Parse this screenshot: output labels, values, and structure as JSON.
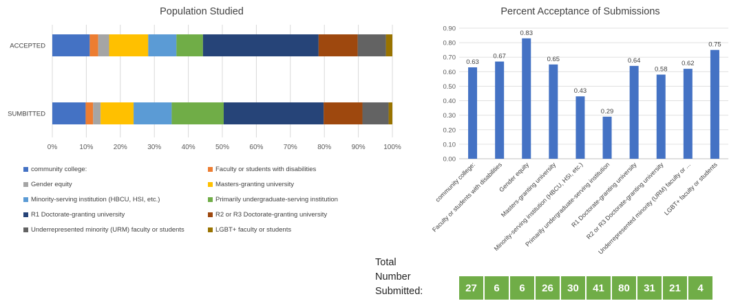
{
  "chart_data": [
    {
      "type": "bar",
      "orientation": "horizontal-stacked-100",
      "title": "Population Studied",
      "categories": [
        "ACCEPTED",
        "SUMBITTED"
      ],
      "x_ticks": [
        "0%",
        "10%",
        "20%",
        "30%",
        "40%",
        "50%",
        "60%",
        "70%",
        "80%",
        "90%",
        "100%"
      ],
      "xlim": [
        0,
        100
      ],
      "legend_position": "bottom",
      "series": [
        {
          "name": "community college:",
          "color": "#4472c4",
          "values": [
            11.0,
            9.8
          ]
        },
        {
          "name": "Faculty or students with disabilities",
          "color": "#ed7d31",
          "values": [
            2.5,
            2.2
          ]
        },
        {
          "name": "Gender equity",
          "color": "#a5a5a5",
          "values": [
            3.2,
            2.2
          ]
        },
        {
          "name": "Masters-granting university",
          "color": "#ffc000",
          "values": [
            11.5,
            9.7
          ]
        },
        {
          "name": "Minority-serving institution (HBCU, HSI, etc.)",
          "color": "#5b9bd5",
          "values": [
            8.3,
            11.2
          ]
        },
        {
          "name": "Primarily undergraduate-serving institution",
          "color": "#70ad47",
          "values": [
            7.8,
            15.3
          ]
        },
        {
          "name": "R1 Doctorate-granting university",
          "color": "#264478",
          "values": [
            34.0,
            29.4
          ]
        },
        {
          "name": "R2 or R3 Doctorate-granting university",
          "color": "#9e480e",
          "values": [
            11.5,
            11.4
          ]
        },
        {
          "name": "Underrepresented minority (URM) faculty or students",
          "color": "#636363",
          "values": [
            8.3,
            7.7
          ]
        },
        {
          "name": "LGBT+ faculty or students",
          "color": "#997300",
          "values": [
            1.9,
            1.1
          ]
        }
      ]
    },
    {
      "type": "bar",
      "title": "Percent Acceptance of Submissions",
      "categories": [
        "community college:",
        "Faculty or students with disabilities",
        "Gender equity",
        "Masters-granting university",
        "Minority-serving institution (HBCU, HSI, etc.)",
        "Primarily undergraduate-serving institution",
        "R1 Doctorate-granting university",
        "R2 or R3 Doctorate-granting university",
        "Underrepresented minority (URM) faculty or ...",
        "LGBT+ faculty or students"
      ],
      "values": [
        0.63,
        0.67,
        0.83,
        0.65,
        0.43,
        0.29,
        0.64,
        0.58,
        0.62,
        0.75
      ],
      "value_labels": [
        "0.63",
        "0.67",
        "0.83",
        "0.65",
        "0.43",
        "0.29",
        "0.64",
        "0.58",
        "0.62",
        "0.75"
      ],
      "y_ticks": [
        "0.00",
        "0.10",
        "0.20",
        "0.30",
        "0.40",
        "0.50",
        "0.60",
        "0.70",
        "0.80",
        "0.90"
      ],
      "ylim": [
        0,
        0.9
      ],
      "color": "#4472c4"
    }
  ],
  "totals": {
    "label_lines": [
      "Total",
      "Number",
      "Submitted:"
    ],
    "values": [
      "27",
      "6",
      "6",
      "26",
      "30",
      "41",
      "80",
      "31",
      "21",
      "4"
    ],
    "color": "#70ad47"
  }
}
